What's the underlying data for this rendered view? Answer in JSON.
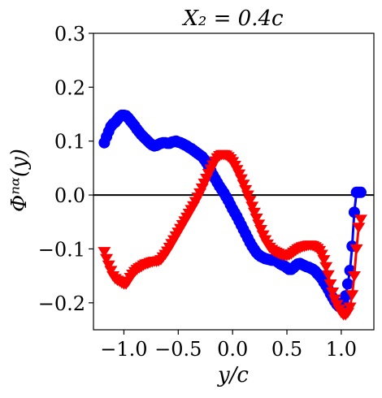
{
  "chart_data": {
    "type": "line",
    "title": "X₂ = 0.4c",
    "xlabel": "y/c",
    "ylabel": "Φⁿᵅ(y)",
    "xlim": [
      -1.28,
      1.3
    ],
    "ylim": [
      -0.25,
      0.3
    ],
    "xticks": [
      -1.0,
      -0.5,
      0.0,
      0.5,
      1.0
    ],
    "xtick_labels": [
      "−1.0",
      "−0.5",
      "0.0",
      "0.5",
      "1.0"
    ],
    "yticks": [
      -0.2,
      -0.1,
      0.0,
      0.1,
      0.2,
      0.3
    ],
    "ytick_labels": [
      "−0.2",
      "−0.1",
      "0.0",
      "0.1",
      "0.2",
      "0.3"
    ],
    "reference_line_y": 0.0,
    "grid": false,
    "series": [
      {
        "color": "#0000ff",
        "marker": "circle",
        "x": [
          -1.18,
          -1.16,
          -1.14,
          -1.12,
          -1.1,
          -1.08,
          -1.06,
          -1.04,
          -1.02,
          -1.0,
          -0.98,
          -0.96,
          -0.94,
          -0.92,
          -0.9,
          -0.88,
          -0.86,
          -0.84,
          -0.82,
          -0.8,
          -0.78,
          -0.76,
          -0.74,
          -0.72,
          -0.7,
          -0.68,
          -0.66,
          -0.64,
          -0.62,
          -0.6,
          -0.58,
          -0.56,
          -0.54,
          -0.52,
          -0.5,
          -0.48,
          -0.46,
          -0.44,
          -0.42,
          -0.4,
          -0.38,
          -0.36,
          -0.34,
          -0.32,
          -0.3,
          -0.28,
          -0.26,
          -0.24,
          -0.22,
          -0.2,
          -0.18,
          -0.16,
          -0.14,
          -0.12,
          -0.1,
          -0.08,
          -0.06,
          -0.04,
          -0.02,
          0.0,
          0.02,
          0.04,
          0.06,
          0.08,
          0.1,
          0.12,
          0.14,
          0.16,
          0.18,
          0.2,
          0.22,
          0.24,
          0.26,
          0.28,
          0.3,
          0.32,
          0.34,
          0.36,
          0.38,
          0.4,
          0.42,
          0.44,
          0.46,
          0.48,
          0.5,
          0.52,
          0.54,
          0.56,
          0.58,
          0.6,
          0.62,
          0.64,
          0.66,
          0.68,
          0.7,
          0.72,
          0.74,
          0.76,
          0.78,
          0.8,
          0.82,
          0.84,
          0.86,
          0.88,
          0.9,
          0.92,
          0.94,
          0.96,
          0.98,
          1.0,
          1.02,
          1.04,
          1.06,
          1.08,
          1.1,
          1.12,
          1.14,
          1.16,
          1.18
        ],
        "y": [
          0.097,
          0.108,
          0.118,
          0.127,
          0.132,
          0.135,
          0.14,
          0.145,
          0.148,
          0.148,
          0.147,
          0.143,
          0.138,
          0.133,
          0.128,
          0.122,
          0.117,
          0.112,
          0.108,
          0.104,
          0.1,
          0.096,
          0.093,
          0.091,
          0.092,
          0.094,
          0.096,
          0.097,
          0.097,
          0.096,
          0.096,
          0.098,
          0.099,
          0.1,
          0.098,
          0.097,
          0.095,
          0.093,
          0.091,
          0.088,
          0.086,
          0.083,
          0.08,
          0.077,
          0.074,
          0.071,
          0.066,
          0.06,
          0.053,
          0.045,
          0.037,
          0.03,
          0.023,
          0.016,
          0.01,
          0.004,
          -0.003,
          -0.01,
          -0.018,
          -0.026,
          -0.033,
          -0.04,
          -0.048,
          -0.056,
          -0.064,
          -0.072,
          -0.08,
          -0.088,
          -0.095,
          -0.101,
          -0.107,
          -0.111,
          -0.114,
          -0.116,
          -0.118,
          -0.119,
          -0.12,
          -0.121,
          -0.121,
          -0.122,
          -0.125,
          -0.128,
          -0.13,
          -0.132,
          -0.135,
          -0.138,
          -0.138,
          -0.135,
          -0.131,
          -0.128,
          -0.127,
          -0.129,
          -0.131,
          -0.133,
          -0.134,
          -0.136,
          -0.138,
          -0.141,
          -0.146,
          -0.15,
          -0.155,
          -0.162,
          -0.168,
          -0.175,
          -0.183,
          -0.19,
          -0.197,
          -0.203,
          -0.207,
          -0.205,
          -0.199,
          -0.187,
          -0.165,
          -0.14,
          -0.095,
          -0.032,
          0.005,
          0.005,
          0.005
        ]
      },
      {
        "color": "#ff0000",
        "marker": "triangle-down",
        "x": [
          -1.18,
          -1.16,
          -1.14,
          -1.12,
          -1.1,
          -1.08,
          -1.06,
          -1.04,
          -1.02,
          -1.0,
          -0.98,
          -0.96,
          -0.94,
          -0.92,
          -0.9,
          -0.88,
          -0.86,
          -0.84,
          -0.82,
          -0.8,
          -0.78,
          -0.76,
          -0.74,
          -0.72,
          -0.7,
          -0.68,
          -0.66,
          -0.64,
          -0.62,
          -0.6,
          -0.58,
          -0.56,
          -0.54,
          -0.52,
          -0.5,
          -0.48,
          -0.46,
          -0.44,
          -0.42,
          -0.4,
          -0.38,
          -0.36,
          -0.34,
          -0.32,
          -0.3,
          -0.28,
          -0.26,
          -0.24,
          -0.22,
          -0.2,
          -0.18,
          -0.16,
          -0.14,
          -0.12,
          -0.1,
          -0.08,
          -0.06,
          -0.04,
          -0.02,
          0.0,
          0.02,
          0.04,
          0.06,
          0.08,
          0.1,
          0.12,
          0.14,
          0.16,
          0.18,
          0.2,
          0.22,
          0.24,
          0.26,
          0.28,
          0.3,
          0.32,
          0.34,
          0.36,
          0.38,
          0.4,
          0.42,
          0.44,
          0.46,
          0.48,
          0.5,
          0.52,
          0.54,
          0.56,
          0.58,
          0.6,
          0.62,
          0.64,
          0.66,
          0.68,
          0.7,
          0.72,
          0.74,
          0.76,
          0.78,
          0.8,
          0.82,
          0.84,
          0.86,
          0.88,
          0.9,
          0.92,
          0.94,
          0.96,
          0.98,
          1.0,
          1.02,
          1.04,
          1.06,
          1.08,
          1.1,
          1.12,
          1.14,
          1.16,
          1.18
        ],
        "y": [
          -0.105,
          -0.118,
          -0.13,
          -0.14,
          -0.15,
          -0.155,
          -0.158,
          -0.16,
          -0.163,
          -0.165,
          -0.165,
          -0.16,
          -0.153,
          -0.147,
          -0.142,
          -0.138,
          -0.135,
          -0.133,
          -0.13,
          -0.128,
          -0.127,
          -0.125,
          -0.124,
          -0.123,
          -0.123,
          -0.122,
          -0.12,
          -0.115,
          -0.11,
          -0.104,
          -0.097,
          -0.09,
          -0.083,
          -0.076,
          -0.069,
          -0.062,
          -0.055,
          -0.048,
          -0.041,
          -0.034,
          -0.027,
          -0.02,
          -0.012,
          -0.004,
          0.004,
          0.013,
          0.022,
          0.031,
          0.04,
          0.048,
          0.056,
          0.063,
          0.069,
          0.073,
          0.075,
          0.075,
          0.074,
          0.071,
          0.067,
          0.062,
          0.055,
          0.047,
          0.039,
          0.03,
          0.02,
          0.01,
          0.0,
          -0.01,
          -0.021,
          -0.032,
          -0.043,
          -0.054,
          -0.064,
          -0.074,
          -0.083,
          -0.091,
          -0.097,
          -0.101,
          -0.104,
          -0.106,
          -0.108,
          -0.11,
          -0.111,
          -0.112,
          -0.112,
          -0.111,
          -0.109,
          -0.106,
          -0.103,
          -0.1,
          -0.098,
          -0.096,
          -0.095,
          -0.094,
          -0.093,
          -0.093,
          -0.094,
          -0.096,
          -0.099,
          -0.103,
          -0.11,
          -0.12,
          -0.133,
          -0.148,
          -0.165,
          -0.18,
          -0.193,
          -0.203,
          -0.212,
          -0.218,
          -0.222,
          -0.222,
          -0.218,
          -0.208,
          -0.185,
          -0.15,
          -0.1,
          -0.06,
          -0.045
        ]
      }
    ]
  }
}
